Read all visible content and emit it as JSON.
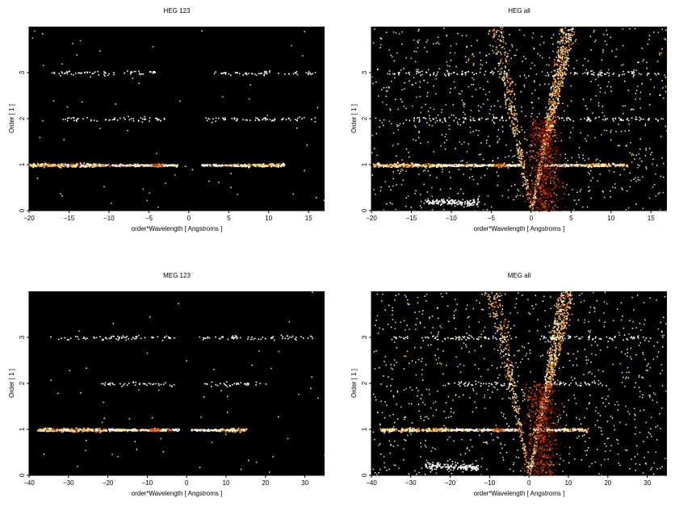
{
  "chart_data": [
    {
      "type": "heatmap",
      "title": "HEG 123",
      "xlabel": "order*Wavelength [ Angstroms ]",
      "ylabel": "Order [ 1 ]",
      "xlim": [
        -20,
        17
      ],
      "ylim": [
        0,
        4
      ],
      "xticks": [
        -20,
        -15,
        -10,
        -5,
        0,
        5,
        10,
        15
      ],
      "yticks": [
        0,
        1,
        2,
        3
      ],
      "background": "#000000",
      "colormap": [
        "#3a0000",
        "#8b1a00",
        "#d44a00",
        "#ff9a20",
        "#ffe070",
        "#ffffff"
      ],
      "bands": [
        {
          "order": 1,
          "x_ranges": [
            [
              -20,
              -1.5
            ],
            [
              1.5,
              12
            ]
          ],
          "peak_x": -4,
          "intensity": "high"
        },
        {
          "order": 2,
          "x_ranges": [
            [
              -16,
              -3
            ],
            [
              2,
              16
            ]
          ],
          "intensity": "low"
        },
        {
          "order": 3,
          "x_ranges": [
            [
              -18,
              -3
            ],
            [
              3,
              16
            ]
          ],
          "intensity": "low"
        }
      ],
      "dispersion_wedge": false
    },
    {
      "type": "heatmap",
      "title": "HEG all",
      "xlabel": "order*Wavelength [ Angstroms ]",
      "ylabel": "Order [ 1 ]",
      "xlim": [
        -20,
        17
      ],
      "ylim": [
        0,
        4
      ],
      "xticks": [
        -20,
        -15,
        -10,
        -5,
        0,
        5,
        10,
        15
      ],
      "yticks": [
        0,
        1,
        2,
        3
      ],
      "background": "#000000",
      "colormap": [
        "#3a0000",
        "#8b1a00",
        "#d44a00",
        "#ff9a20",
        "#ffe070",
        "#ffffff"
      ],
      "bands": [
        {
          "order": 1,
          "x_ranges": [
            [
              -20,
              -1.5
            ],
            [
              1.5,
              12
            ]
          ],
          "peak_x": -4,
          "intensity": "high"
        },
        {
          "order": 2,
          "x_ranges": [
            [
              -16,
              -3
            ],
            [
              2,
              16
            ]
          ],
          "intensity": "low"
        },
        {
          "order": 3,
          "x_ranges": [
            [
              -18,
              -3
            ],
            [
              3,
              16
            ]
          ],
          "intensity": "low"
        }
      ],
      "dispersion_wedge": true
    },
    {
      "type": "heatmap",
      "title": "MEG 123",
      "xlabel": "order*Wavelength [ Angstroms ]",
      "ylabel": "Order [ 1 ]",
      "xlim": [
        -40,
        35
      ],
      "ylim": [
        0,
        4
      ],
      "xticks": [
        -40,
        -30,
        -20,
        -10,
        0,
        10,
        20,
        30
      ],
      "yticks": [
        0,
        1,
        2,
        3
      ],
      "background": "#000000",
      "colormap": [
        "#3a0000",
        "#8b1a00",
        "#d44a00",
        "#ff9a20",
        "#ffe070",
        "#ffffff"
      ],
      "bands": [
        {
          "order": 1,
          "x_ranges": [
            [
              -38,
              -2
            ],
            [
              1,
              15
            ]
          ],
          "peak_x": -8,
          "intensity": "high"
        },
        {
          "order": 2,
          "x_ranges": [
            [
              -22,
              -3
            ],
            [
              3,
              20
            ]
          ],
          "intensity": "low"
        },
        {
          "order": 3,
          "x_ranges": [
            [
              -35,
              -3
            ],
            [
              3,
              32
            ]
          ],
          "intensity": "low"
        }
      ],
      "dispersion_wedge": false
    },
    {
      "type": "heatmap",
      "title": "MEG all",
      "xlabel": "order*Wavelength [ Angstroms ]",
      "ylabel": "Order [ 1 ]",
      "xlim": [
        -40,
        35
      ],
      "ylim": [
        0,
        4
      ],
      "xticks": [
        -40,
        -30,
        -20,
        -10,
        0,
        10,
        20,
        30
      ],
      "yticks": [
        0,
        1,
        2,
        3
      ],
      "background": "#000000",
      "colormap": [
        "#3a0000",
        "#8b1a00",
        "#d44a00",
        "#ff9a20",
        "#ffe070",
        "#ffffff"
      ],
      "bands": [
        {
          "order": 1,
          "x_ranges": [
            [
              -38,
              -2
            ],
            [
              1,
              15
            ]
          ],
          "peak_x": -8,
          "intensity": "high"
        },
        {
          "order": 2,
          "x_ranges": [
            [
              -22,
              -3
            ],
            [
              3,
              20
            ]
          ],
          "intensity": "low"
        },
        {
          "order": 3,
          "x_ranges": [
            [
              -35,
              -3
            ],
            [
              3,
              32
            ]
          ],
          "intensity": "low"
        }
      ],
      "dispersion_wedge": true
    }
  ]
}
